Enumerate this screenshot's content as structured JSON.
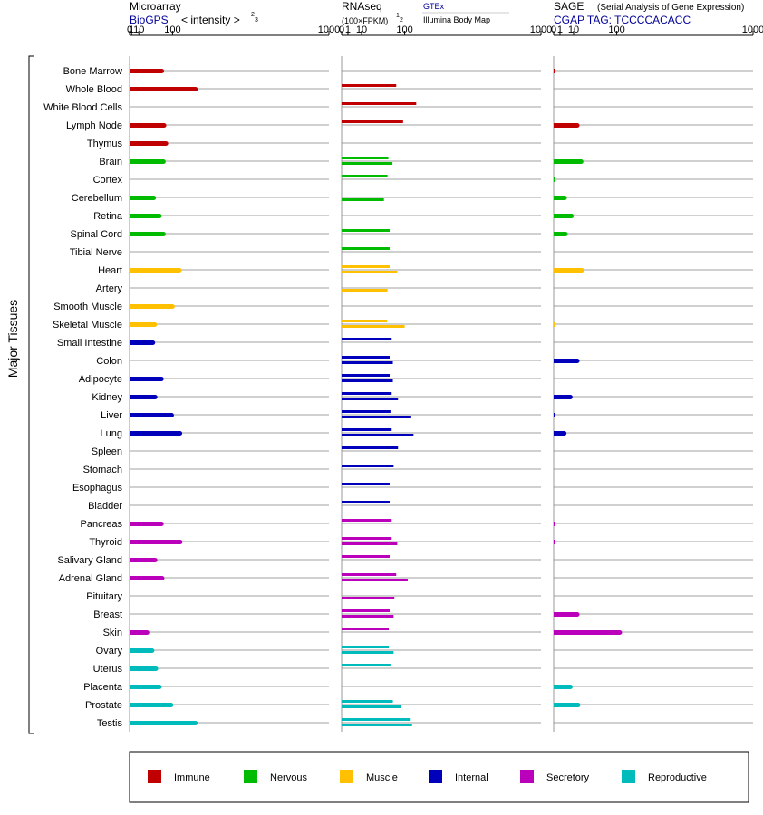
{
  "chart_data": {
    "type": "bar",
    "orientation": "horizontal",
    "y_axis_label": "Major Tissues",
    "categories": [
      "Bone Marrow",
      "Whole Blood",
      "White Blood Cells",
      "Lymph Node",
      "Thymus",
      "Brain",
      "Cortex",
      "Cerebellum",
      "Retina",
      "Spinal Cord",
      "Tibial Nerve",
      "Heart",
      "Artery",
      "Smooth Muscle",
      "Skeletal Muscle",
      "Small Intestine",
      "Colon",
      "Adipocyte",
      "Kidney",
      "Liver",
      "Lung",
      "Spleen",
      "Stomach",
      "Esophagus",
      "Bladder",
      "Pancreas",
      "Thyroid",
      "Salivary Gland",
      "Adrenal Gland",
      "Pituitary",
      "Breast",
      "Skin",
      "Ovary",
      "Uterus",
      "Placenta",
      "Prostate",
      "Testis"
    ],
    "groups": [
      "Immune",
      "Immune",
      "Immune",
      "Immune",
      "Immune",
      "Nervous",
      "Nervous",
      "Nervous",
      "Nervous",
      "Nervous",
      "Nervous",
      "Muscle",
      "Muscle",
      "Muscle",
      "Muscle",
      "Internal",
      "Internal",
      "Internal",
      "Internal",
      "Internal",
      "Internal",
      "Internal",
      "Internal",
      "Internal",
      "Internal",
      "Secretory",
      "Secretory",
      "Secretory",
      "Secretory",
      "Secretory",
      "Secretory",
      "Secretory",
      "Reproductive",
      "Reproductive",
      "Reproductive",
      "Reproductive",
      "Reproductive"
    ],
    "legend": [
      {
        "name": "Immune",
        "color": "#c00000"
      },
      {
        "name": "Nervous",
        "color": "#00bb00"
      },
      {
        "name": "Muscle",
        "color": "#ffc000"
      },
      {
        "name": "Internal",
        "color": "#0000bb"
      },
      {
        "name": "Secretory",
        "color": "#bb00bb"
      },
      {
        "name": "Reproductive",
        "color": "#00bbbb"
      }
    ],
    "legend_position": "bottom",
    "ticks": [
      0,
      1,
      10,
      100,
      1000
    ],
    "tick_labels": [
      "0",
      "1",
      "10",
      "100",
      "1000"
    ],
    "panels": [
      {
        "name": "Microarray",
        "source": "BioGPS",
        "scale_label": "< intensity >",
        "scale_power_num": "2",
        "scale_power_den": "3",
        "exponent": 0.6667,
        "series": [
          {
            "name": "",
            "values": [
              65,
              190,
              null,
              72,
              78,
              70,
              null,
              42,
              58,
              70,
              null,
              125,
              null,
              100,
              45,
              40,
              null,
              64,
              46,
              97,
              127,
              null,
              null,
              null,
              null,
              64,
              128,
              46,
              66,
              null,
              null,
              26,
              38,
              48,
              58,
              95,
              190
            ]
          }
        ]
      },
      {
        "name": "RNAseq",
        "scale_label": "(100×FPKM)",
        "scale_power_num": "1",
        "scale_power_den": "2",
        "legend_top": "GTEx",
        "legend_bottom": "Illumina Body Map",
        "exponent": 0.5,
        "series": [
          {
            "name": "GTEx",
            "values": [
              null,
              75,
              140,
              95,
              null,
              55,
              53,
              null,
              null,
              58,
              58,
              58,
              null,
              null,
              52,
              63,
              58,
              58,
              63,
              60,
              63,
              80,
              68,
              58,
              58,
              63,
              63,
              58,
              75,
              null,
              58,
              56,
              56,
              60,
              null,
              66,
              120
            ]
          },
          {
            "name": "Illumina Body Map",
            "values": [
              null,
              null,
              null,
              null,
              null,
              65,
              null,
              45,
              null,
              null,
              null,
              78,
              53,
              null,
              100,
              null,
              66,
              66,
              80,
              122,
              130,
              null,
              null,
              null,
              null,
              null,
              78,
              null,
              110,
              70,
              68,
              null,
              68,
              null,
              null,
              88,
              125
            ]
          }
        ]
      },
      {
        "name": "SAGE",
        "name_note": "(Serial Analysis of Gene Expression)",
        "tag_label": "CGAP TAG: TCCCCACACC",
        "exponent": 0.5,
        "series": [
          {
            "name": "",
            "values": [
              0.05,
              null,
              null,
              14,
              null,
              19,
              0.02,
              3,
              8,
              3.5,
              null,
              20,
              null,
              null,
              0.02,
              null,
              14,
              null,
              7,
              0.03,
              2.8,
              null,
              null,
              null,
              null,
              0.05,
              0.04,
              null,
              null,
              null,
              14,
              110,
              null,
              null,
              7,
              15,
              null
            ]
          }
        ]
      }
    ]
  }
}
